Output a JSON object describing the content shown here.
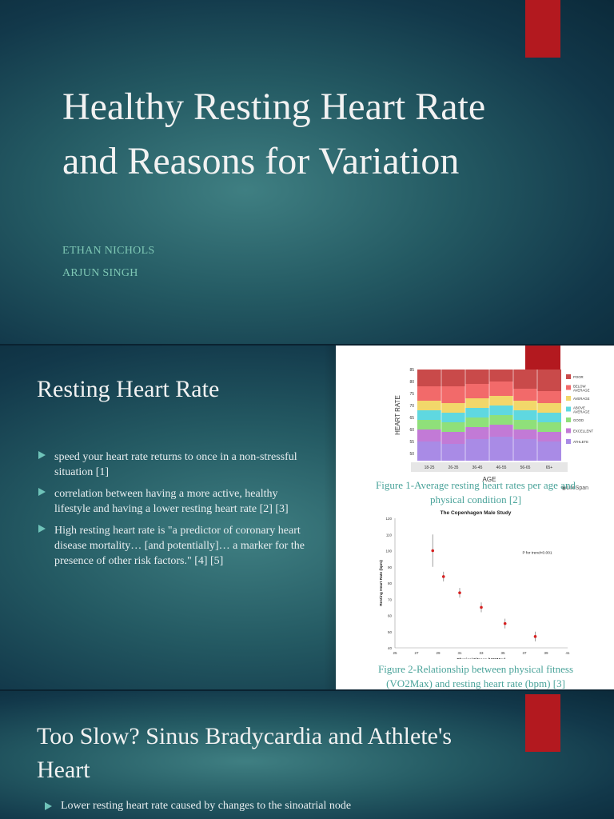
{
  "slide1": {
    "title": "Healthy Resting Heart Rate and Reasons for Variation",
    "authors": [
      "ETHAN NICHOLS",
      "ARJUN SINGH"
    ],
    "colors": {
      "accent_red": "#b3191f",
      "author_teal": "#7ec7b4"
    }
  },
  "slide2": {
    "title": "Resting Heart Rate",
    "bullets": [
      "speed your heart rate returns to once in a non-stressful situation [1]",
      "correlation between having a more active, healthy lifestyle and having a lower resting heart rate [2] [3]",
      "High resting heart rate is \"a predictor of coronary heart disease mortality… [and potentially]… a marker for the presence of other risk factors.\" [4] [5]"
    ],
    "figure1_caption": "Figure 1-Average resting heart rates per age and physical condition [2]",
    "figure2_caption": "Figure 2-Relationship between physical fitness (VO2Max) and resting heart rate (bpm) [3]"
  },
  "slide3": {
    "title": "Too Slow? Sinus Bradycardia and Athlete's Heart",
    "bullet": "Lower resting heart rate caused by changes to the sinoatrial node"
  },
  "chart_data": [
    {
      "type": "area",
      "title": "",
      "xlabel": "AGE",
      "ylabel": "HEART RATE",
      "categories": [
        "18-25",
        "26-35",
        "36-45",
        "46-55",
        "56-65",
        "65+"
      ],
      "yticks": [
        50,
        55,
        60,
        65,
        70,
        75,
        80,
        85
      ],
      "ylim": [
        47,
        85
      ],
      "series": [
        {
          "name": "ATHLETE",
          "color": "#a98be6",
          "values": [
            55,
            54,
            56,
            57,
            56,
            55
          ]
        },
        {
          "name": "EXCELLENT",
          "color": "#c27ad6",
          "values": [
            60,
            59,
            61,
            62,
            60,
            59
          ]
        },
        {
          "name": "GOOD",
          "color": "#8fe07a",
          "values": [
            64,
            63,
            65,
            66,
            64,
            63
          ]
        },
        {
          "name": "ABOVE AVERAGE",
          "color": "#5fd8e0",
          "values": [
            68,
            67,
            69,
            70,
            68,
            67
          ]
        },
        {
          "name": "AVERAGE",
          "color": "#f2d76a",
          "values": [
            72,
            71,
            73,
            74,
            72,
            71
          ]
        },
        {
          "name": "BELOW AVERAGE",
          "color": "#f26a6a",
          "values": [
            78,
            78,
            79,
            80,
            77,
            76
          ]
        },
        {
          "name": "POOR",
          "color": "#c94a4a",
          "values": [
            85,
            85,
            85,
            85,
            85,
            85
          ]
        }
      ],
      "legend_placement": "right",
      "watermark": "LifeSpan"
    },
    {
      "type": "scatter",
      "title": "The Copenhagen Male Study",
      "xlabel": "Physical Fitness (VO2Max)",
      "ylabel": "Resting Heart Rate (bpm)",
      "annotation": "P for trend<0.001",
      "xticks": [
        25,
        27,
        29,
        31,
        33,
        35,
        37,
        39,
        41
      ],
      "yticks": [
        40,
        50,
        60,
        70,
        80,
        90,
        100,
        110,
        120
      ],
      "xlim": [
        25,
        41
      ],
      "ylim": [
        40,
        120
      ],
      "points": [
        {
          "x": 28.5,
          "y": 100,
          "err": 10
        },
        {
          "x": 29.5,
          "y": 84,
          "err": 3
        },
        {
          "x": 31,
          "y": 74,
          "err": 3
        },
        {
          "x": 33,
          "y": 65,
          "err": 3
        },
        {
          "x": 35.2,
          "y": 55,
          "err": 3
        },
        {
          "x": 38,
          "y": 47,
          "err": 3
        }
      ],
      "grid": false
    }
  ]
}
